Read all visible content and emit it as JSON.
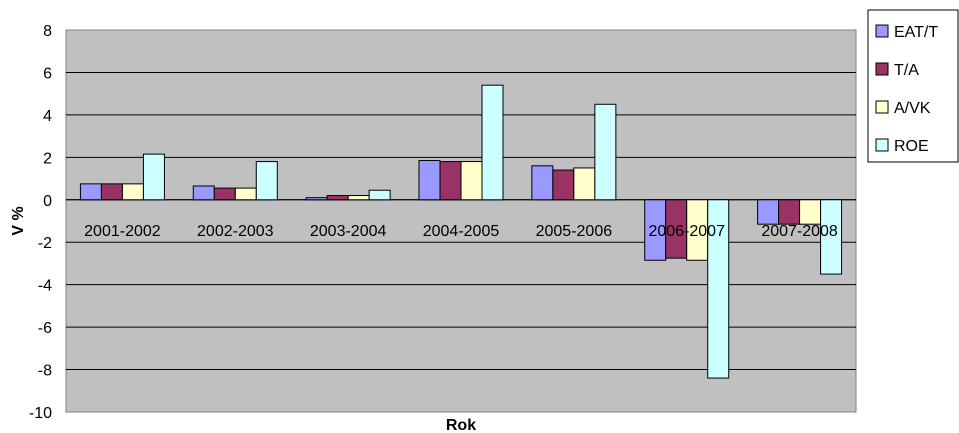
{
  "chart_data": {
    "type": "bar",
    "title": "",
    "xlabel": "Rok",
    "ylabel": "V %",
    "ylim": [
      -10,
      8
    ],
    "ytick_step": 2,
    "grid": true,
    "legend_position": "right-top",
    "categories": [
      "2001-2002",
      "2002-2003",
      "2003-2004",
      "2004-2005",
      "2005-2006",
      "2006-2007",
      "2007-2008"
    ],
    "series": [
      {
        "name": "EAT/T",
        "color": "#9999ff",
        "values": [
          0.75,
          0.65,
          0.1,
          1.85,
          1.6,
          -2.85,
          -1.15
        ]
      },
      {
        "name": "T/A",
        "color": "#993366",
        "values": [
          0.75,
          0.55,
          0.2,
          1.8,
          1.4,
          -2.75,
          -1.15
        ]
      },
      {
        "name": "A/VK",
        "color": "#ffffcc",
        "values": [
          0.75,
          0.55,
          0.2,
          1.8,
          1.5,
          -2.85,
          -1.15
        ]
      },
      {
        "name": "ROE",
        "color": "#ccffff",
        "values": [
          2.15,
          1.8,
          0.45,
          5.4,
          4.5,
          -8.4,
          -3.5
        ]
      }
    ],
    "plot_background": "#c0c0c0"
  }
}
